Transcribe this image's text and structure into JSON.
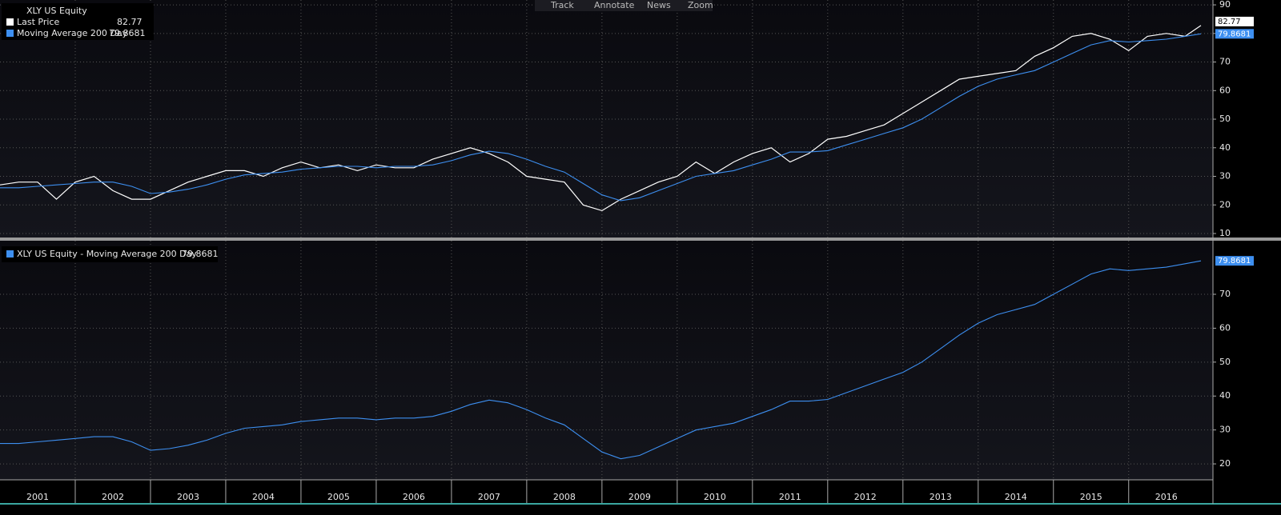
{
  "toolbar": [
    "Track",
    "Annotate",
    "News",
    "Zoom"
  ],
  "chart_data": [
    {
      "type": "line",
      "title": "XLY US Equity",
      "x": [
        2001,
        2001.25,
        2001.5,
        2001.75,
        2002,
        2002.25,
        2002.5,
        2002.75,
        2003,
        2003.25,
        2003.5,
        2003.75,
        2004,
        2004.25,
        2004.5,
        2004.75,
        2005,
        2005.25,
        2005.5,
        2005.75,
        2006,
        2006.25,
        2006.5,
        2006.75,
        2007,
        2007.25,
        2007.5,
        2007.75,
        2008,
        2008.25,
        2008.5,
        2008.75,
        2009,
        2009.25,
        2009.5,
        2009.75,
        2010,
        2010.25,
        2010.5,
        2010.75,
        2011,
        2011.25,
        2011.5,
        2011.75,
        2012,
        2012.25,
        2012.5,
        2012.75,
        2013,
        2013.25,
        2013.5,
        2013.75,
        2014,
        2014.25,
        2014.5,
        2014.75,
        2015,
        2015.25,
        2015.5,
        2015.75,
        2016,
        2016.25,
        2016.5,
        2016.75,
        2016.96
      ],
      "series": [
        {
          "name": "Last Price",
          "color": "#ffffff",
          "values": [
            27,
            28,
            28,
            22,
            28,
            30,
            25,
            22,
            22,
            25,
            28,
            30,
            32,
            32,
            30,
            33,
            35,
            33,
            34,
            32,
            34,
            33,
            33,
            36,
            38,
            40,
            38,
            35,
            30,
            29,
            28,
            20,
            18,
            22,
            25,
            28,
            30,
            35,
            31,
            35,
            38,
            40,
            35,
            38,
            43,
            44,
            46,
            48,
            52,
            56,
            60,
            64,
            65,
            66,
            67,
            72,
            75,
            79,
            80,
            78,
            74,
            79,
            80,
            79,
            82.77
          ]
        },
        {
          "name": "Moving Average 200 Day",
          "color": "#3d8ff0",
          "values": [
            26,
            26,
            26.5,
            27,
            27.5,
            28,
            28,
            26.5,
            24,
            24.5,
            25.5,
            27,
            29,
            30.5,
            31,
            31.5,
            32.5,
            33,
            33.5,
            33.5,
            33,
            33.5,
            33.5,
            34,
            35.5,
            37.5,
            38.8,
            38,
            36,
            33.5,
            31.5,
            27.5,
            23.5,
            21.5,
            22.5,
            25,
            27.5,
            30,
            31,
            32,
            34,
            36,
            38.5,
            38.5,
            39,
            41,
            43,
            45,
            47,
            50,
            54,
            58,
            61.5,
            64,
            65.5,
            67,
            70,
            73,
            76,
            77.5,
            77,
            77.5,
            78,
            79,
            79.8681
          ]
        }
      ],
      "xlim": [
        2001,
        2017.12
      ],
      "ylim": [
        8.6,
        91.7
      ],
      "yticks": [
        10,
        20,
        30,
        40,
        50,
        60,
        70,
        80,
        90
      ],
      "grid": true
    },
    {
      "type": "line",
      "x": [
        2001,
        2001.25,
        2001.5,
        2001.75,
        2002,
        2002.25,
        2002.5,
        2002.75,
        2003,
        2003.25,
        2003.5,
        2003.75,
        2004,
        2004.25,
        2004.5,
        2004.75,
        2005,
        2005.25,
        2005.5,
        2005.75,
        2006,
        2006.25,
        2006.5,
        2006.75,
        2007,
        2007.25,
        2007.5,
        2007.75,
        2008,
        2008.25,
        2008.5,
        2008.75,
        2009,
        2009.25,
        2009.5,
        2009.75,
        2010,
        2010.25,
        2010.5,
        2010.75,
        2011,
        2011.25,
        2011.5,
        2011.75,
        2012,
        2012.25,
        2012.5,
        2012.75,
        2013,
        2013.25,
        2013.5,
        2013.75,
        2014,
        2014.25,
        2014.5,
        2014.75,
        2015,
        2015.25,
        2015.5,
        2015.75,
        2016,
        2016.25,
        2016.5,
        2016.75,
        2016.96
      ],
      "series": [
        {
          "name": "XLY US Equity - Moving Average 200 Day",
          "color": "#3d8ff0",
          "values": [
            26,
            26,
            26.5,
            27,
            27.5,
            28,
            28,
            26.5,
            24,
            24.5,
            25.5,
            27,
            29,
            30.5,
            31,
            31.5,
            32.5,
            33,
            33.5,
            33.5,
            33,
            33.5,
            33.5,
            34,
            35.5,
            37.5,
            38.8,
            38,
            36,
            33.5,
            31.5,
            27.5,
            23.5,
            21.5,
            22.5,
            25,
            27.5,
            30,
            31,
            32,
            34,
            36,
            38.5,
            38.5,
            39,
            41,
            43,
            45,
            47,
            50,
            54,
            58,
            61.5,
            64,
            65.5,
            67,
            70,
            73,
            76,
            77.5,
            77,
            77.5,
            78,
            79,
            79.8681
          ]
        }
      ],
      "xlim": [
        2001,
        2017.12
      ],
      "ylim": [
        15.3,
        85.8
      ],
      "yticks": [
        20,
        30,
        40,
        50,
        60,
        70
      ],
      "grid": true,
      "xticks": [
        {
          "value": 2001,
          "label": "2001"
        },
        {
          "value": 2002,
          "label": "2002"
        },
        {
          "value": 2003,
          "label": "2003"
        },
        {
          "value": 2004,
          "label": "2004"
        },
        {
          "value": 2005,
          "label": "2005"
        },
        {
          "value": 2006,
          "label": "2006"
        },
        {
          "value": 2007,
          "label": "2007"
        },
        {
          "value": 2008,
          "label": "2008"
        },
        {
          "value": 2009,
          "label": "2009"
        },
        {
          "value": 2010,
          "label": "2010"
        },
        {
          "value": 2011,
          "label": "2011"
        },
        {
          "value": 2012,
          "label": "2012"
        },
        {
          "value": 2013,
          "label": "2013"
        },
        {
          "value": 2014,
          "label": "2014"
        },
        {
          "value": 2015,
          "label": "2015"
        },
        {
          "value": 2016,
          "label": "2016"
        }
      ]
    }
  ]
}
